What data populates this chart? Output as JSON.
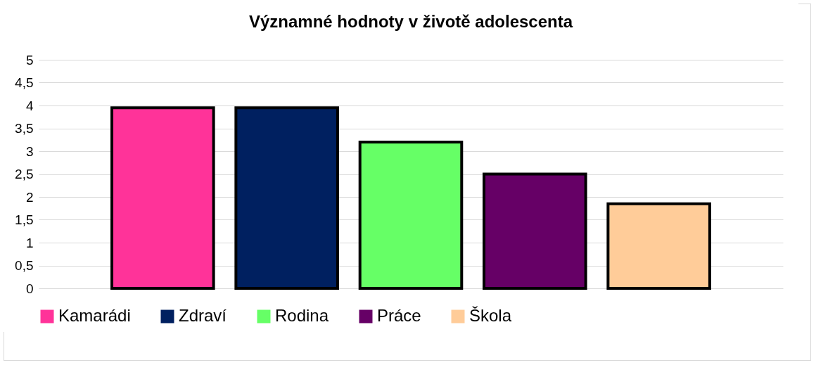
{
  "chart_data": {
    "type": "bar",
    "title": "Významné hodnoty v životě adolescenta",
    "categories": [
      null,
      null,
      null,
      null,
      null
    ],
    "series": [
      {
        "name": "Kamarádi",
        "color": "#ff3399",
        "values": [
          3.95,
          null,
          null,
          null,
          null
        ]
      },
      {
        "name": "Zdraví",
        "color": "#002060",
        "values": [
          null,
          3.95,
          null,
          null,
          null
        ]
      },
      {
        "name": "Rodina",
        "color": "#66ff66",
        "values": [
          null,
          null,
          3.2,
          null,
          null
        ]
      },
      {
        "name": "Práce",
        "color": "#660066",
        "values": [
          null,
          null,
          null,
          2.5,
          null
        ]
      },
      {
        "name": "Škola",
        "color": "#ffcc99",
        "values": [
          null,
          null,
          null,
          null,
          1.85
        ]
      }
    ],
    "ylim": [
      0,
      5
    ],
    "yticks": [
      0,
      {
        "value": 0.5,
        "label": "0,5"
      },
      1,
      {
        "value": 1.5,
        "label": "1,5"
      },
      2,
      {
        "value": 2.5,
        "label": "2,5"
      },
      3,
      {
        "value": 3.5,
        "label": "3,5"
      },
      4,
      {
        "value": 4.5,
        "label": "4,5"
      },
      5
    ],
    "grid": "y",
    "legend": "bottom"
  }
}
